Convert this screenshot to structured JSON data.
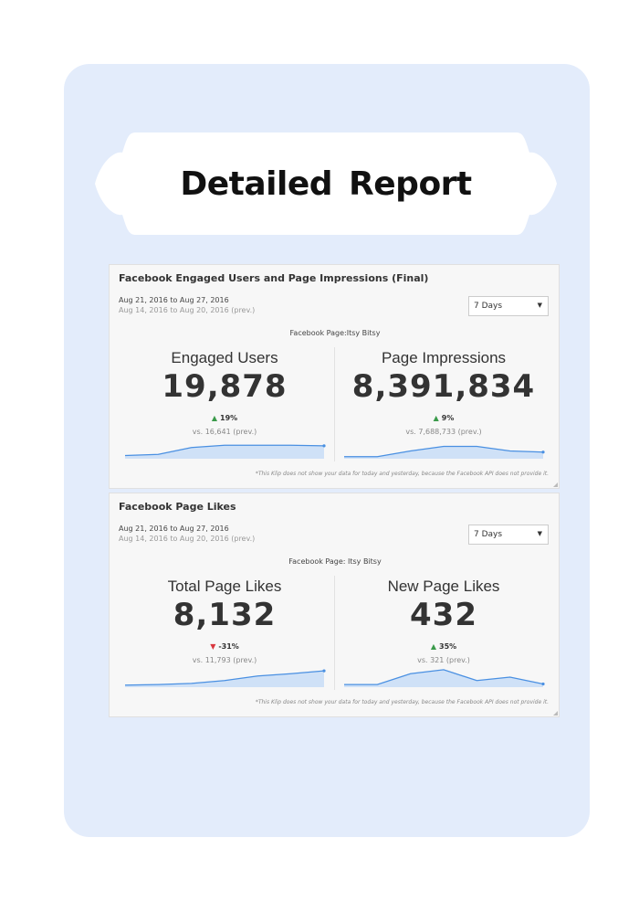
{
  "report": {
    "title": "Detailed Report"
  },
  "panels": [
    {
      "title": "Facebook Engaged Users and Page Impressions (Final)",
      "date_range": "Aug 21, 2016 to Aug 27, 2016",
      "prev_range": "Aug 14, 2016 to Aug 20, 2016 (prev.)",
      "period_select": "7 Days",
      "page_label": "Facebook Page:Itsy Bitsy",
      "metrics": [
        {
          "label": "Engaged Users",
          "value": "19,878",
          "change": "19%",
          "direction": "up",
          "prev": "vs. 16,641 (prev.)",
          "spark": [
            2,
            3,
            9,
            11,
            11,
            11,
            10.5
          ]
        },
        {
          "label": "Page Impressions",
          "value": "8,391,834",
          "change": "9%",
          "direction": "up",
          "prev": "vs. 7,688,733 (prev.)",
          "spark": [
            1,
            1,
            6,
            10,
            10,
            6,
            5
          ]
        }
      ],
      "footnote": "*This Klip does not show your data for today and yesterday, because the Facebook API does not provide it."
    },
    {
      "title": "Facebook Page Likes",
      "date_range": "Aug 21, 2016 to Aug 27, 2016",
      "prev_range": "Aug 14, 2016 to Aug 20, 2016 (prev.)",
      "period_select": "7 Days",
      "page_label": "Facebook Page: Itsy Bitsy",
      "metrics": [
        {
          "label": "Total Page Likes",
          "value": "8,132",
          "change": "-31%",
          "direction": "down",
          "prev": "vs. 11,793 (prev.)",
          "spark": [
            1,
            1.5,
            2.5,
            5,
            9,
            11,
            13.5
          ]
        },
        {
          "label": "New Page Likes",
          "value": "432",
          "change": "35%",
          "direction": "up",
          "prev": "vs. 321 (prev.)",
          "spark": [
            1.5,
            1.5,
            11,
            14.5,
            5,
            8,
            2
          ]
        }
      ],
      "footnote": "*This Klip does not show your data for today and yesterday, because the Facebook API does not provide it."
    }
  ],
  "colors": {
    "card": "#e3ecfb",
    "spark_line": "#4a90e2",
    "spark_fill": "#cfe1f7",
    "up": "#3a9a4a",
    "down": "#d9363e"
  }
}
